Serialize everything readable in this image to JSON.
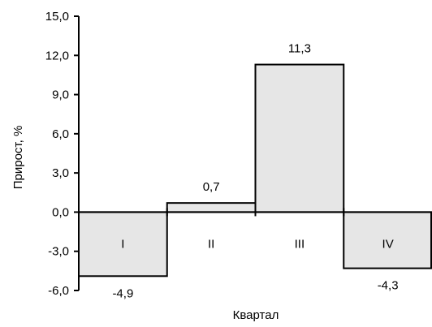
{
  "chart_data": {
    "type": "bar",
    "title": "",
    "xlabel": "Квартал",
    "ylabel": "Прирост, %",
    "categories": [
      "I",
      "II",
      "III",
      "IV"
    ],
    "values": [
      -4.9,
      0.7,
      11.3,
      -4.3
    ],
    "value_labels": [
      "-4,9",
      "0,7",
      "11,3",
      "-4,3"
    ],
    "ylim": [
      -6.0,
      15.0
    ],
    "yticks": [
      15.0,
      12.0,
      9.0,
      6.0,
      3.0,
      0.0,
      -3.0,
      -6.0
    ],
    "ytick_labels": [
      "15,0",
      "12,0",
      "9,0",
      "6,0",
      "3,0",
      "0,0",
      "-3,0",
      "-6,0"
    ],
    "grid": false,
    "legend": "none",
    "colors": {
      "bar_fill": "#e6e6e6",
      "bar_stroke": "#000000",
      "axis": "#000000"
    }
  }
}
